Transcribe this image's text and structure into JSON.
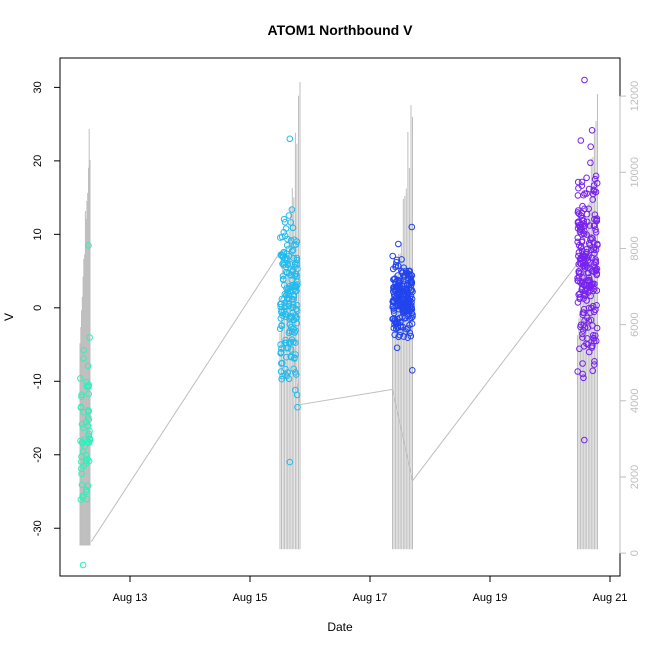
{
  "chart_data": {
    "type": "scatter",
    "title": "ATOM1 Northbound V",
    "xlabel": "Date",
    "ylabel": "V",
    "x_unit": "date",
    "xlim": [
      "2011-08-11T20:00",
      "2011-08-21T04:00"
    ],
    "ylim": [
      -36.5,
      34
    ],
    "y2lim": [
      -600,
      13000
    ],
    "x_ticks": [
      {
        "date": "2011-08-13",
        "label": "Aug 13"
      },
      {
        "date": "2011-08-15",
        "label": "Aug 15"
      },
      {
        "date": "2011-08-17",
        "label": "Aug 17"
      },
      {
        "date": "2011-08-19",
        "label": "Aug 19"
      },
      {
        "date": "2011-08-21",
        "label": "Aug 21"
      }
    ],
    "y_ticks": [
      -30,
      -20,
      -10,
      0,
      10,
      20,
      30
    ],
    "y2_ticks": [
      0,
      2000,
      4000,
      6000,
      8000,
      10000,
      12000
    ],
    "colors": {
      "cluster_1": "#33eebb",
      "cluster_2": "#22bbee",
      "cluster_3": "#2244ee",
      "cluster_4": "#7722ee",
      "secondary_line": "#bebebe"
    },
    "grid": false,
    "legend": "none",
    "clusters": [
      {
        "start": "2011-08-12T04:00",
        "end": "2011-08-12T08:00",
        "n": 60,
        "v_min": -35,
        "v_max": 8.5,
        "color_key": "cluster_1"
      },
      {
        "start": "2011-08-15T12:00",
        "end": "2011-08-15T19:00",
        "n": 180,
        "v_min": -21,
        "v_max": 23,
        "color_key": "cluster_2"
      },
      {
        "start": "2011-08-17T09:00",
        "end": "2011-08-17T17:00",
        "n": 220,
        "v_min": -8.5,
        "v_max": 11,
        "color_key": "cluster_3"
      },
      {
        "start": "2011-08-20T11:00",
        "end": "2011-08-20T19:00",
        "n": 230,
        "v_min": -18,
        "v_max": 31,
        "color_key": "cluster_4"
      }
    ],
    "secondary_series": {
      "axis": "right",
      "color_key": "secondary_line",
      "anchor_points": [
        {
          "x": "2011-08-12T08:30",
          "y": 300
        },
        {
          "x": "2011-08-15T12:00",
          "y": 7900
        },
        {
          "x": "2011-08-15T20:00",
          "y": 3900
        },
        {
          "x": "2011-08-17T09:00",
          "y": 4300
        },
        {
          "x": "2011-08-17T17:00",
          "y": 1900
        },
        {
          "x": "2011-08-20T11:00",
          "y": 7600
        }
      ],
      "bursts": [
        {
          "start": "2011-08-12T04:00",
          "end": "2011-08-12T08:00",
          "low": 200,
          "high": 12000
        },
        {
          "start": "2011-08-15T12:00",
          "end": "2011-08-15T20:00",
          "low": 100,
          "high": 12700
        },
        {
          "start": "2011-08-17T09:00",
          "end": "2011-08-17T17:00",
          "low": 100,
          "high": 12800
        },
        {
          "start": "2011-08-20T11:00",
          "end": "2011-08-20T19:00",
          "low": 100,
          "high": 12600
        }
      ]
    }
  }
}
